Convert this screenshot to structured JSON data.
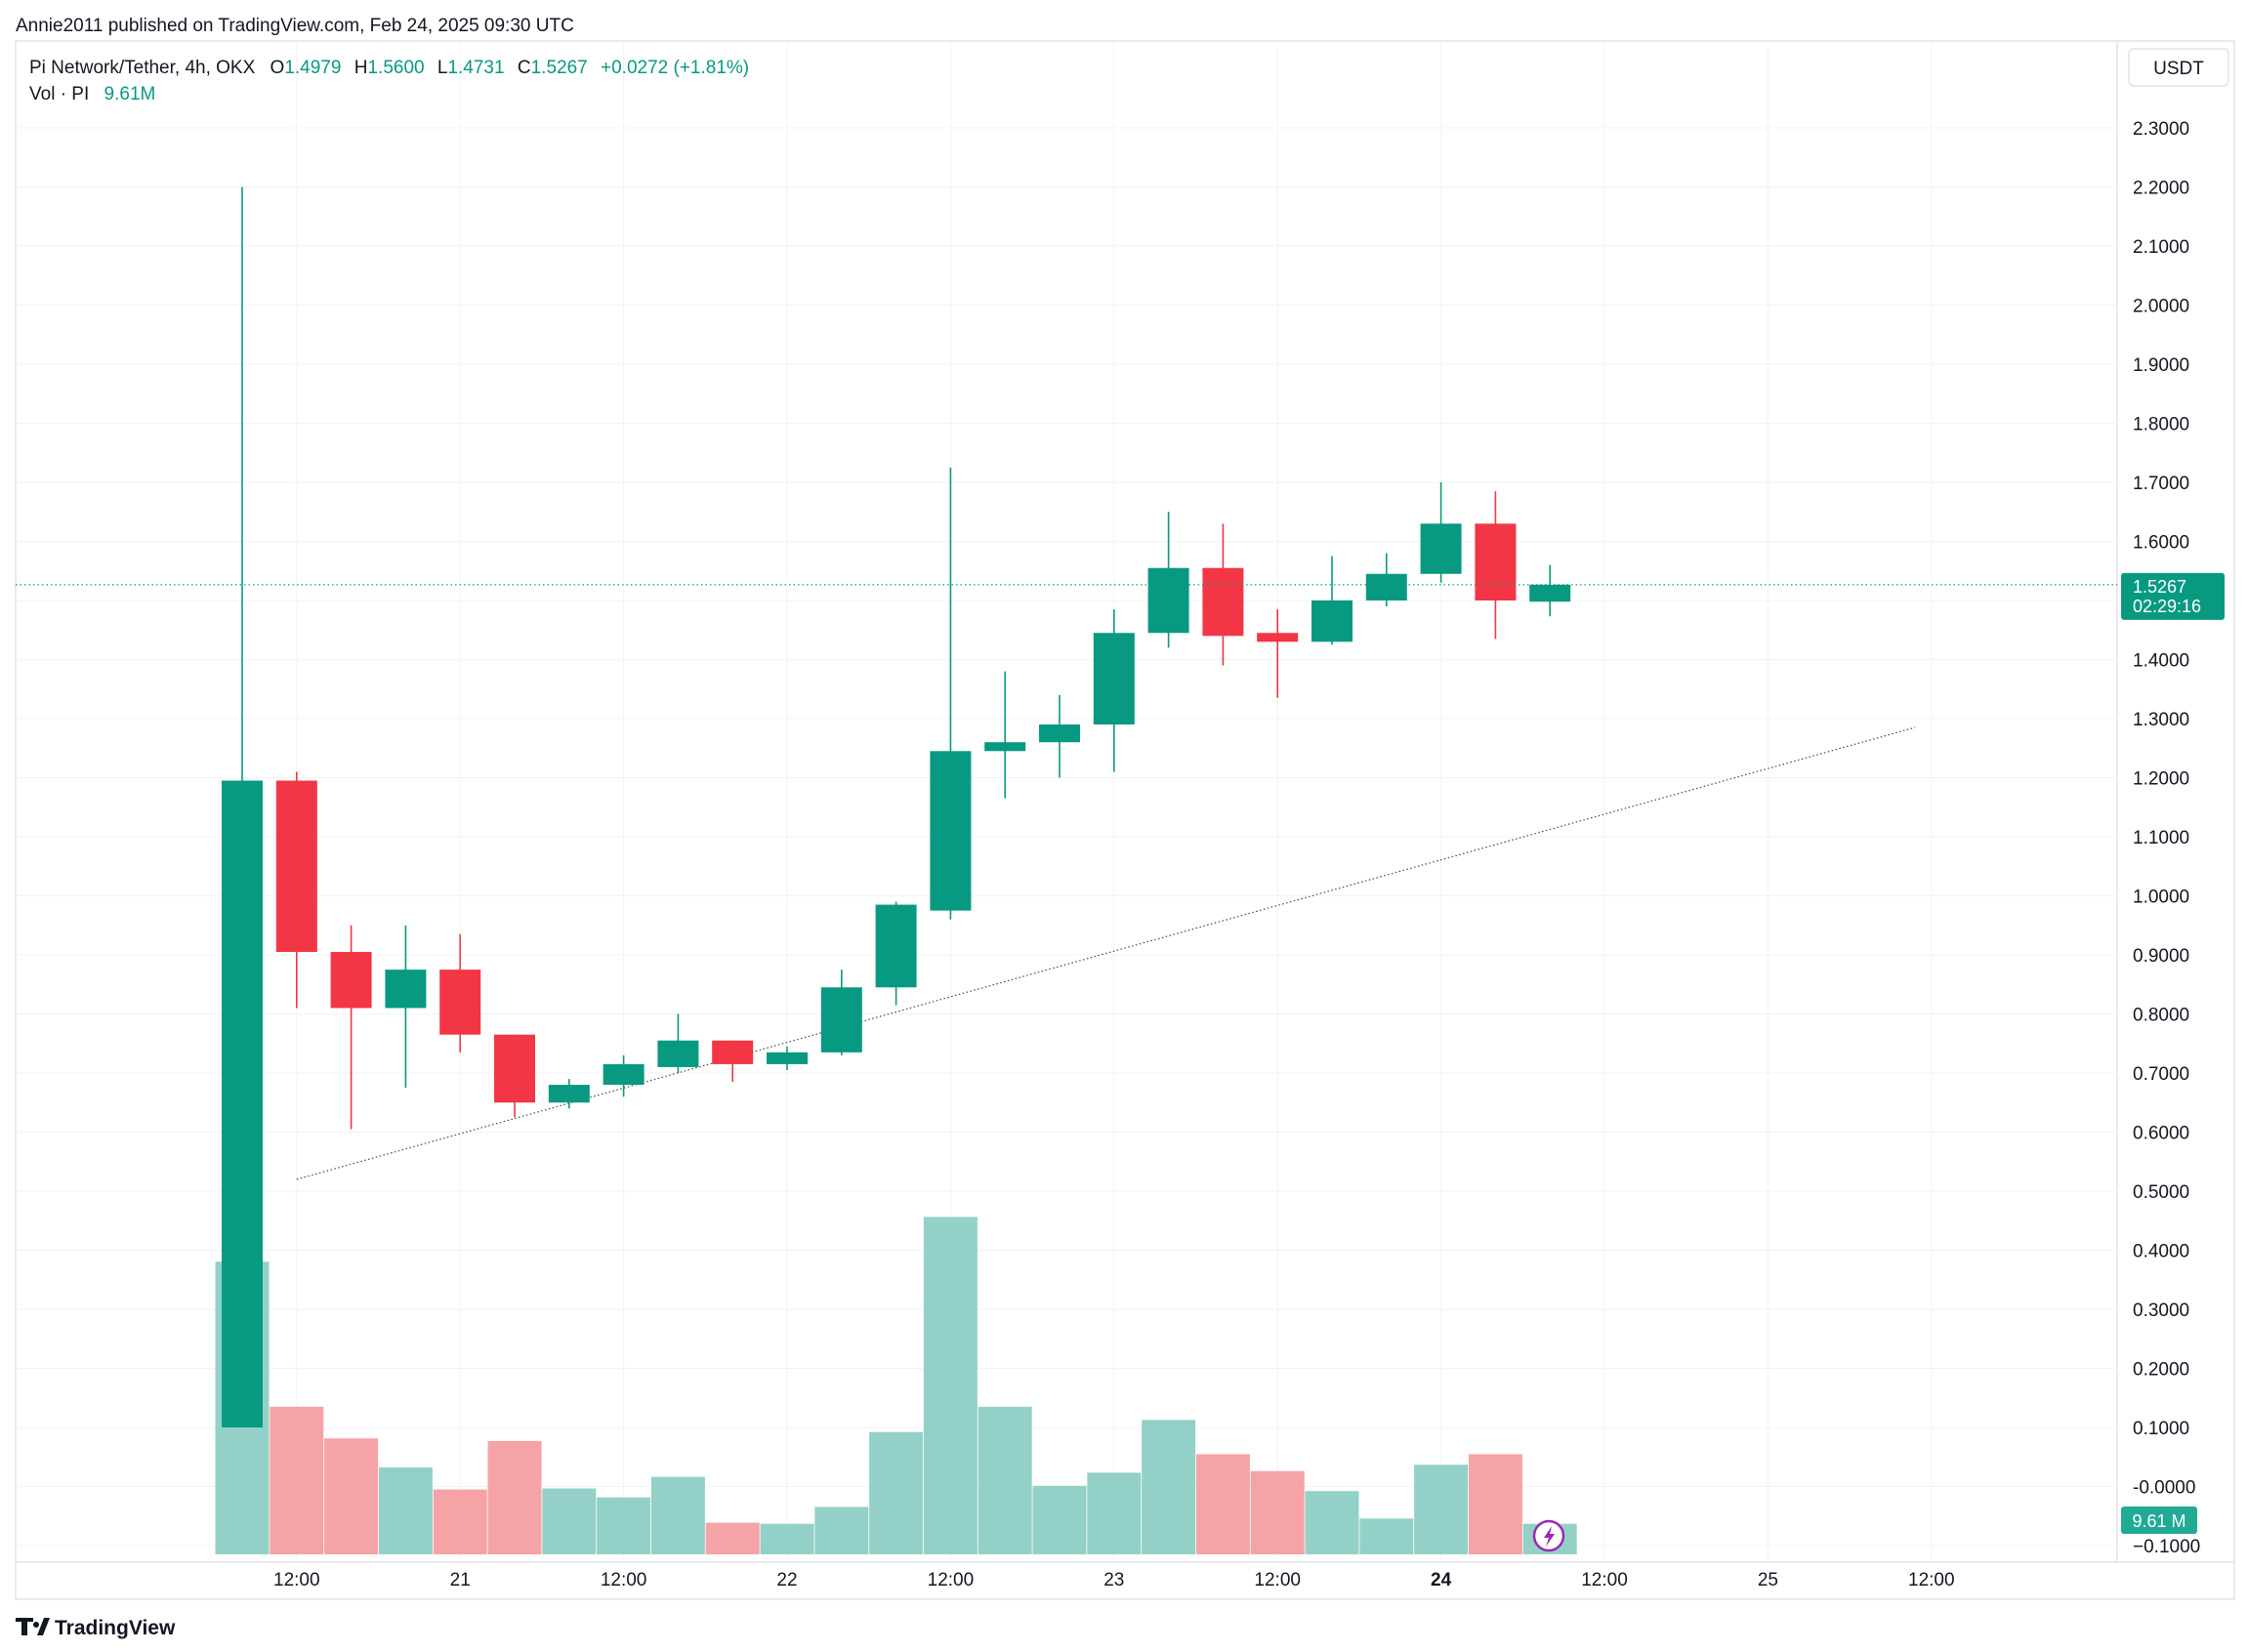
{
  "header": {
    "publisher": "Annie2011 published on TradingView.com, Feb 24, 2025 09:30 UTC"
  },
  "legend": {
    "symbol": "Pi Network/Tether, 4h, OKX",
    "o_label": "O",
    "o_value": "1.4979",
    "h_label": "H",
    "h_value": "1.5600",
    "l_label": "L",
    "l_value": "1.4731",
    "c_label": "C",
    "c_value": "1.5267",
    "change": "+0.0272 (+1.81%)",
    "vol_label": "Vol · PI",
    "vol_value": "9.61M"
  },
  "currency_button": "USDT",
  "last_price": {
    "value": "1.5267",
    "countdown": "02:29:16"
  },
  "volume_badge": "9.61 M",
  "footer": {
    "brand": "TradingView"
  },
  "colors": {
    "up": "#089981",
    "down": "#f23645",
    "vol_up": "#93d1c8",
    "vol_down": "#f5a3a6",
    "grid": "#f0f3fa",
    "text": "#131722",
    "axis_text": "#131722"
  },
  "chart_data": {
    "type": "candlestick",
    "timeframe": "4h",
    "y_axis": {
      "min": -0.1,
      "max": 2.35,
      "ticks": [
        "2.3000",
        "2.2000",
        "2.1000",
        "2.0000",
        "1.9000",
        "1.8000",
        "1.7000",
        "1.6000",
        "1.5000",
        "1.4000",
        "1.3000",
        "1.2000",
        "1.1000",
        "1.0000",
        "0.9000",
        "0.8000",
        "0.7000",
        "0.6000",
        "0.5000",
        "0.4000",
        "0.3000",
        "0.2000",
        "0.1000",
        "-0.0000",
        "−0.1000"
      ],
      "tick_values": [
        2.3,
        2.2,
        2.1,
        2.0,
        1.9,
        1.8,
        1.7,
        1.6,
        1.5,
        1.4,
        1.3,
        1.2,
        1.1,
        1.0,
        0.9,
        0.8,
        0.7,
        0.6,
        0.5,
        0.4,
        0.3,
        0.2,
        0.1,
        0.0,
        -0.1
      ]
    },
    "x_axis": {
      "labels": [
        {
          "text": "12:00",
          "bar": 1
        },
        {
          "text": "21",
          "bar": 4
        },
        {
          "text": "12:00",
          "bar": 7
        },
        {
          "text": "22",
          "bar": 10
        },
        {
          "text": "12:00",
          "bar": 13
        },
        {
          "text": "23",
          "bar": 16
        },
        {
          "text": "12:00",
          "bar": 19
        },
        {
          "text": "24",
          "bar": 22,
          "bold": true
        },
        {
          "text": "12:00",
          "bar": 25
        },
        {
          "text": "25",
          "bar": 28
        },
        {
          "text": "12:00",
          "bar": 31
        }
      ]
    },
    "candles": [
      {
        "o": 0.1,
        "h": 2.2,
        "l": 0.1,
        "c": 1.195
      },
      {
        "o": 1.195,
        "h": 1.21,
        "l": 0.81,
        "c": 0.905
      },
      {
        "o": 0.905,
        "h": 0.95,
        "l": 0.605,
        "c": 0.81
      },
      {
        "o": 0.81,
        "h": 0.95,
        "l": 0.675,
        "c": 0.875
      },
      {
        "o": 0.875,
        "h": 0.935,
        "l": 0.735,
        "c": 0.765
      },
      {
        "o": 0.765,
        "h": 0.765,
        "l": 0.625,
        "c": 0.65
      },
      {
        "o": 0.65,
        "h": 0.69,
        "l": 0.64,
        "c": 0.68
      },
      {
        "o": 0.68,
        "h": 0.73,
        "l": 0.66,
        "c": 0.715
      },
      {
        "o": 0.71,
        "h": 0.8,
        "l": 0.7,
        "c": 0.755
      },
      {
        "o": 0.755,
        "h": 0.755,
        "l": 0.685,
        "c": 0.715
      },
      {
        "o": 0.715,
        "h": 0.745,
        "l": 0.705,
        "c": 0.735
      },
      {
        "o": 0.735,
        "h": 0.875,
        "l": 0.73,
        "c": 0.845
      },
      {
        "o": 0.845,
        "h": 0.99,
        "l": 0.815,
        "c": 0.985
      },
      {
        "o": 0.975,
        "h": 1.725,
        "l": 0.96,
        "c": 1.245
      },
      {
        "o": 1.245,
        "h": 1.38,
        "l": 1.165,
        "c": 1.26
      },
      {
        "o": 1.26,
        "h": 1.34,
        "l": 1.2,
        "c": 1.29
      },
      {
        "o": 1.29,
        "h": 1.485,
        "l": 1.21,
        "c": 1.445
      },
      {
        "o": 1.445,
        "h": 1.65,
        "l": 1.42,
        "c": 1.555
      },
      {
        "o": 1.555,
        "h": 1.63,
        "l": 1.39,
        "c": 1.44
      },
      {
        "o": 1.445,
        "h": 1.485,
        "l": 1.335,
        "c": 1.43
      },
      {
        "o": 1.43,
        "h": 1.575,
        "l": 1.425,
        "c": 1.5
      },
      {
        "o": 1.5,
        "h": 1.58,
        "l": 1.49,
        "c": 1.545
      },
      {
        "o": 1.545,
        "h": 1.7,
        "l": 1.53,
        "c": 1.63
      },
      {
        "o": 1.63,
        "h": 1.685,
        "l": 1.435,
        "c": 1.5
      },
      {
        "o": 1.4979,
        "h": 1.56,
        "l": 1.4731,
        "c": 1.5267
      }
    ],
    "volume": {
      "unit": "relative",
      "values": [
        0.555,
        0.28,
        0.22,
        0.165,
        0.123,
        0.215,
        0.125,
        0.108,
        0.147,
        0.06,
        0.058,
        0.09,
        0.232,
        0.64,
        0.28,
        0.13,
        0.155,
        0.255,
        0.19,
        0.158,
        0.12,
        0.068,
        0.17,
        0.19,
        0.058
      ]
    },
    "trendline": {
      "from": {
        "bar": 1,
        "price": 0.52
      },
      "to": {
        "bar": 30.7,
        "price": 1.285
      },
      "style": "dotted"
    },
    "last_price_line": 1.5267,
    "grid": true
  }
}
